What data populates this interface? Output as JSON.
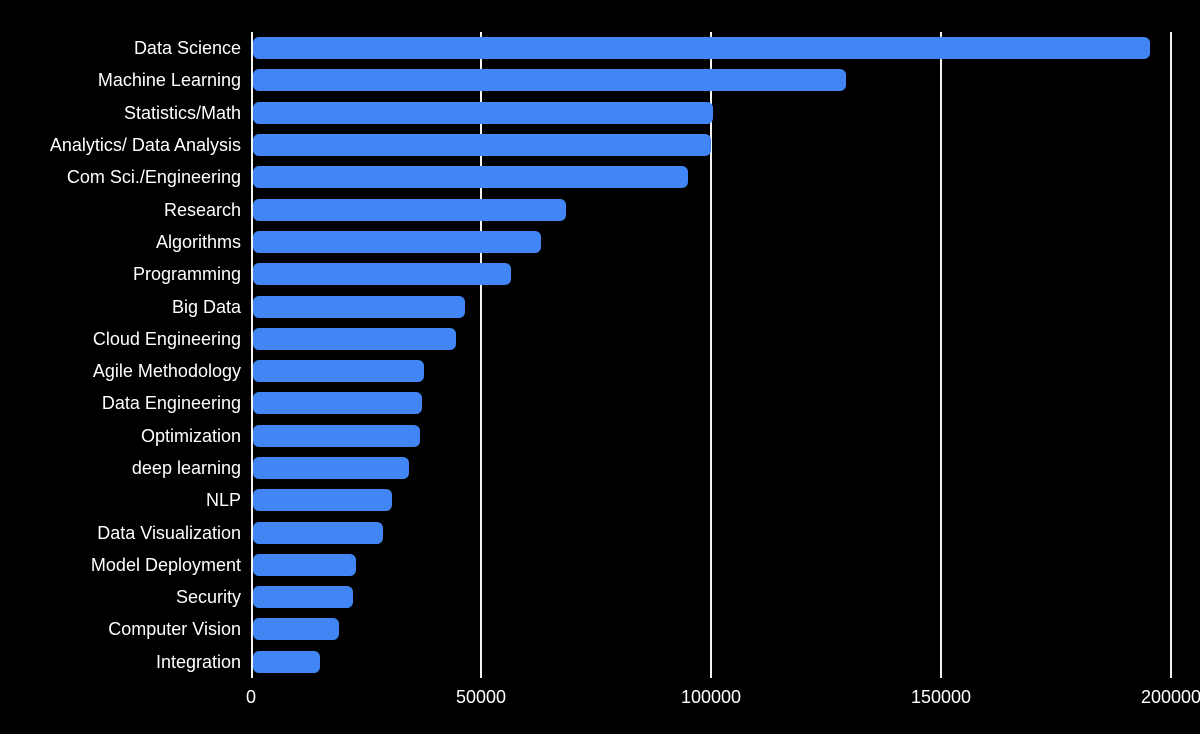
{
  "chart_data": {
    "type": "bar",
    "orientation": "horizontal",
    "title": "",
    "xlabel": "",
    "ylabel": "",
    "grid": true,
    "legend": false,
    "xlim": [
      0,
      200000
    ],
    "x_ticks": [
      0,
      50000,
      100000,
      150000,
      200000
    ],
    "x_tick_labels": [
      "0",
      "50000",
      "100000",
      "150000",
      "200000"
    ],
    "categories": [
      "Data Science",
      "Machine Learning",
      "Statistics/Math",
      "Analytics/ Data Analysis",
      "Com Sci./Engineering",
      "Research",
      "Algorithms",
      "Programming",
      "Big Data",
      "Cloud Engineering",
      "Agile Methodology",
      "Data Engineering",
      "Optimization",
      "deep learning",
      "NLP",
      "Data Visualization",
      "Model Deployment",
      "Security",
      "Computer Vision",
      "Integration"
    ],
    "values": [
      195000,
      129000,
      100000,
      99500,
      94500,
      68000,
      62600,
      56000,
      46000,
      44200,
      37200,
      36800,
      36300,
      34000,
      30200,
      28300,
      22400,
      21800,
      18700,
      14600
    ],
    "colors": {
      "background": "#000000",
      "bar": "#4285f4",
      "gridline": "#f3f3f3",
      "text": "#ffffff"
    }
  }
}
